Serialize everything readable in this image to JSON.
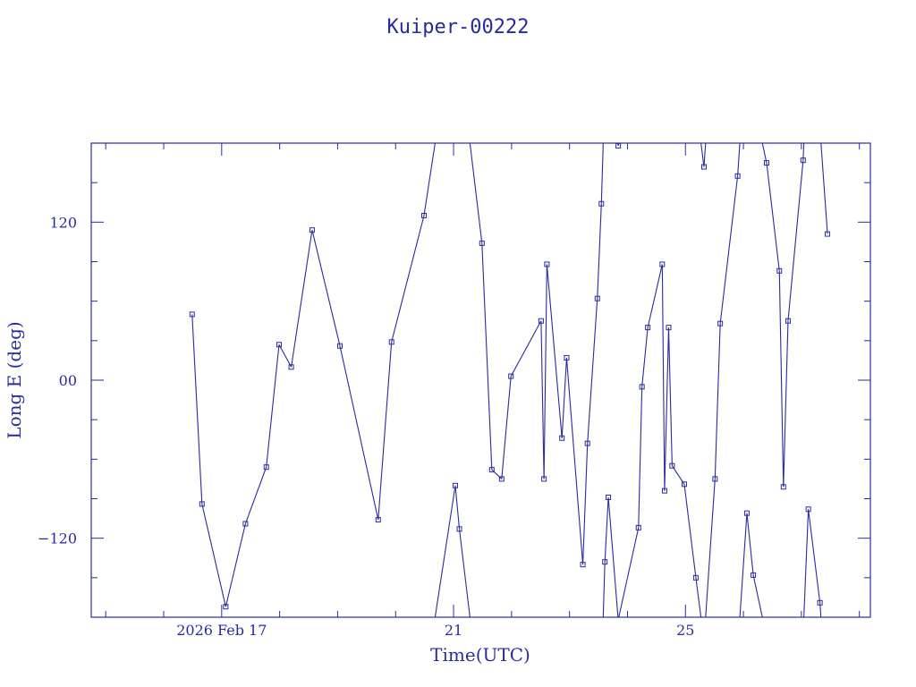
{
  "chart_data": {
    "type": "line",
    "title": "Kuiper-00222",
    "xlabel": "Time(UTC)",
    "ylabel": "Long E (deg)",
    "x_unit": "days (Feb 2026)",
    "xlim": [
      14.75,
      28.19
    ],
    "ylim": [
      -180,
      180
    ],
    "x_tick_labels": [
      {
        "x": 17,
        "label": "2026 Feb 17"
      },
      {
        "x": 21,
        "label": "21"
      },
      {
        "x": 25,
        "label": "25"
      }
    ],
    "x_minor_ticks": [
      15,
      16,
      17,
      18,
      19,
      20,
      21,
      22,
      23,
      24,
      25,
      26,
      27,
      28
    ],
    "y_tick_labels": [
      {
        "y": -120,
        "label": "−120"
      },
      {
        "y": 0,
        "label": "00"
      },
      {
        "y": 120,
        "label": "120"
      }
    ],
    "y_minor_ticks": [
      -150,
      -120,
      -90,
      -60,
      -30,
      0,
      30,
      60,
      90,
      120,
      150
    ],
    "grid": false,
    "longitude_wraps": true,
    "series": [
      {
        "points": [
          {
            "x": 16.49,
            "y": 50
          },
          {
            "x": 16.66,
            "y": -94
          },
          {
            "x": 17.07,
            "y": -172
          },
          {
            "x": 17.41,
            "y": -109
          },
          {
            "x": 17.77,
            "y": -66
          },
          {
            "x": 17.99,
            "y": 27
          },
          {
            "x": 18.2,
            "y": 10
          },
          {
            "x": 18.56,
            "y": 114
          },
          {
            "x": 19.04,
            "y": 26
          },
          {
            "x": 19.7,
            "y": -106
          },
          {
            "x": 19.93,
            "y": 29
          },
          {
            "x": 20.49,
            "y": 125
          },
          {
            "x": 21.03,
            "y": -80
          },
          {
            "x": 21.1,
            "y": -113
          },
          {
            "x": 21.49,
            "y": 104
          },
          {
            "x": 21.66,
            "y": -68
          },
          {
            "x": 21.83,
            "y": -75
          },
          {
            "x": 21.99,
            "y": 3
          },
          {
            "x": 22.51,
            "y": 45
          },
          {
            "x": 22.56,
            "y": -75
          },
          {
            "x": 22.61,
            "y": 88
          },
          {
            "x": 22.87,
            "y": -44
          },
          {
            "x": 22.95,
            "y": 17
          },
          {
            "x": 23.23,
            "y": -140
          },
          {
            "x": 23.31,
            "y": -48
          },
          {
            "x": 23.48,
            "y": 62
          },
          {
            "x": 23.55,
            "y": 134
          },
          {
            "x": 23.61,
            "y": -138
          },
          {
            "x": 23.67,
            "y": -89
          },
          {
            "x": 23.84,
            "y": 178
          },
          {
            "x": 24.19,
            "y": -112
          },
          {
            "x": 24.25,
            "y": -5
          },
          {
            "x": 24.35,
            "y": 40
          },
          {
            "x": 24.6,
            "y": 88
          },
          {
            "x": 24.64,
            "y": -84
          },
          {
            "x": 24.71,
            "y": 40
          },
          {
            "x": 24.77,
            "y": -65
          },
          {
            "x": 24.98,
            "y": -79
          },
          {
            "x": 25.18,
            "y": -150
          },
          {
            "x": 25.32,
            "y": 162
          },
          {
            "x": 25.51,
            "y": -75
          },
          {
            "x": 25.6,
            "y": 43
          },
          {
            "x": 25.9,
            "y": 155
          },
          {
            "x": 26.06,
            "y": -101
          },
          {
            "x": 26.17,
            "y": -148
          },
          {
            "x": 26.4,
            "y": 165
          },
          {
            "x": 26.62,
            "y": 83
          },
          {
            "x": 26.69,
            "y": -81
          },
          {
            "x": 26.77,
            "y": 45
          },
          {
            "x": 27.03,
            "y": 167
          },
          {
            "x": 27.12,
            "y": -98
          },
          {
            "x": 27.32,
            "y": -169
          },
          {
            "x": 27.45,
            "y": 111
          }
        ]
      }
    ]
  }
}
